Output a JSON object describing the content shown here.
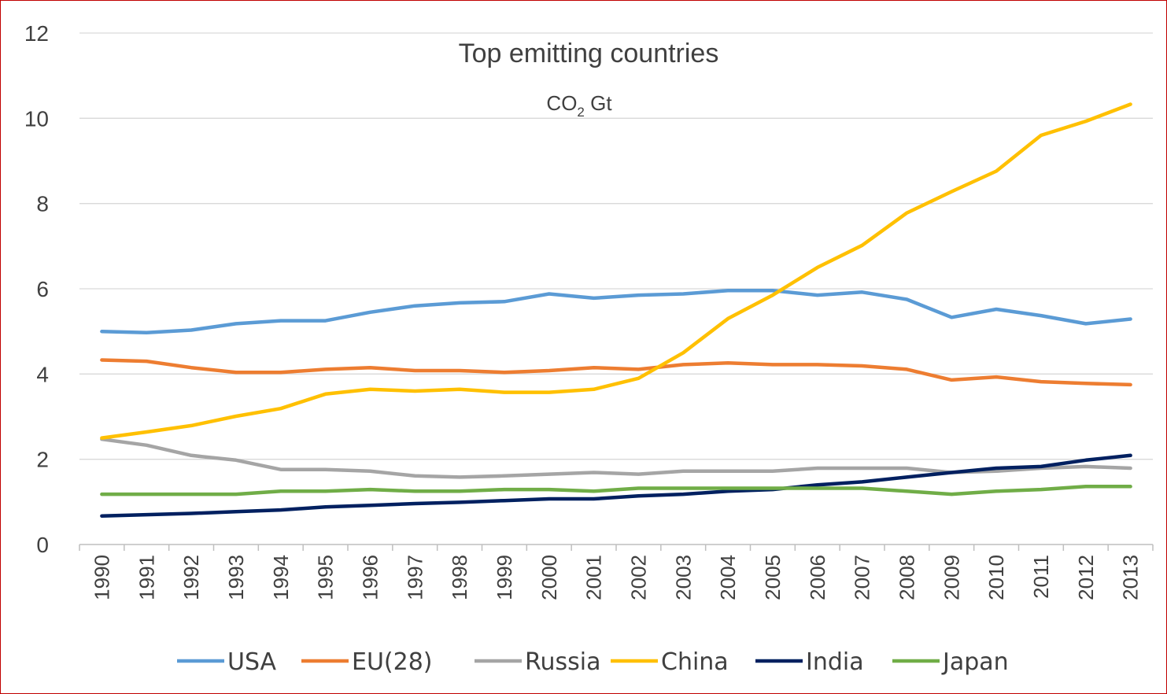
{
  "chart_data": {
    "type": "line",
    "title": "Top emitting countries",
    "subtitle": {
      "main": "CO",
      "sub": "2",
      "rest": " Gt"
    },
    "xlabel": "",
    "ylabel": "",
    "ylim": [
      0,
      12
    ],
    "yticks": [
      0,
      2,
      4,
      6,
      8,
      10,
      12
    ],
    "grid": true,
    "legend_position": "bottom",
    "categories": [
      "1990",
      "1991",
      "1992",
      "1993",
      "1994",
      "1995",
      "1996",
      "1997",
      "1998",
      "1999",
      "2000",
      "2001",
      "2002",
      "2003",
      "2004",
      "2005",
      "2006",
      "2007",
      "2008",
      "2009",
      "2010",
      "2011",
      "2012",
      "2013"
    ],
    "series": [
      {
        "name": "USA",
        "color": "#5b9bd5",
        "values": [
          5.0,
          4.97,
          5.03,
          5.18,
          5.25,
          5.25,
          5.45,
          5.6,
          5.67,
          5.7,
          5.88,
          5.78,
          5.85,
          5.88,
          5.96,
          5.96,
          5.85,
          5.92,
          5.75,
          5.33,
          5.52,
          5.37,
          5.18,
          5.29
        ]
      },
      {
        "name": "EU(28)",
        "color": "#ed7d31",
        "values": [
          4.33,
          4.3,
          4.15,
          4.04,
          4.04,
          4.11,
          4.15,
          4.08,
          4.08,
          4.04,
          4.08,
          4.15,
          4.11,
          4.22,
          4.26,
          4.22,
          4.22,
          4.19,
          4.11,
          3.86,
          3.93,
          3.82,
          3.78,
          3.75
        ]
      },
      {
        "name": "Russia",
        "color": "#a5a5a5",
        "values": [
          2.47,
          2.33,
          2.09,
          1.98,
          1.76,
          1.76,
          1.72,
          1.61,
          1.58,
          1.61,
          1.65,
          1.69,
          1.65,
          1.72,
          1.72,
          1.72,
          1.79,
          1.79,
          1.79,
          1.69,
          1.72,
          1.79,
          1.83,
          1.79
        ]
      },
      {
        "name": "China",
        "color": "#ffc000",
        "values": [
          2.5,
          2.64,
          2.79,
          3.01,
          3.19,
          3.53,
          3.64,
          3.6,
          3.64,
          3.57,
          3.57,
          3.64,
          3.9,
          4.5,
          5.3,
          5.85,
          6.5,
          7.02,
          7.78,
          8.28,
          8.76,
          9.6,
          9.93,
          10.33
        ]
      },
      {
        "name": "India",
        "color": "#002060",
        "values": [
          0.67,
          0.7,
          0.73,
          0.77,
          0.81,
          0.88,
          0.92,
          0.96,
          0.99,
          1.03,
          1.07,
          1.07,
          1.14,
          1.18,
          1.25,
          1.29,
          1.4,
          1.47,
          1.58,
          1.69,
          1.79,
          1.83,
          1.98,
          2.09
        ]
      },
      {
        "name": "Japan",
        "color": "#70ad47",
        "values": [
          1.18,
          1.18,
          1.18,
          1.18,
          1.25,
          1.25,
          1.29,
          1.25,
          1.25,
          1.29,
          1.29,
          1.25,
          1.32,
          1.32,
          1.32,
          1.32,
          1.32,
          1.32,
          1.25,
          1.18,
          1.25,
          1.29,
          1.36,
          1.36
        ]
      }
    ]
  }
}
